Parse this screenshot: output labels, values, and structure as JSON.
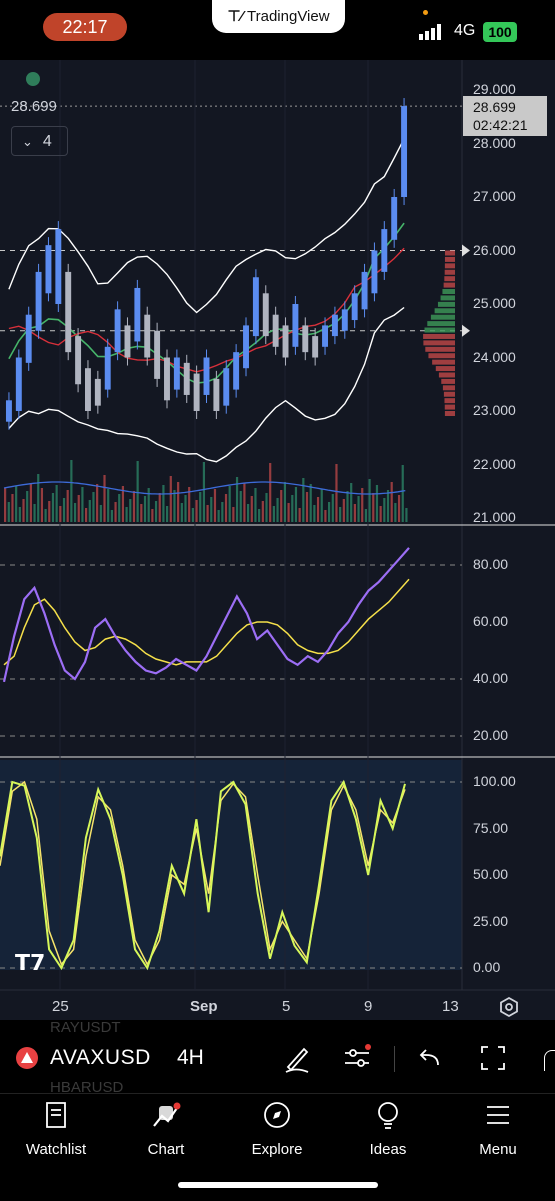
{
  "status_bar": {
    "time": "22:17",
    "app_label": "TradingView",
    "network": "4G",
    "battery": "100"
  },
  "chart": {
    "last_price": "28.699",
    "countdown": "02:42:21",
    "indicator_count": "4",
    "price_axis": [
      "29.000",
      "28.000",
      "27.000",
      "26.000",
      "25.000",
      "24.000",
      "23.000",
      "22.000",
      "21.000"
    ],
    "rsi_axis": [
      "80.00",
      "60.00",
      "40.00",
      "20.00"
    ],
    "stoch_axis": [
      "100.00",
      "75.00",
      "50.00",
      "25.00",
      "0.00"
    ],
    "date_axis": [
      "25",
      "Sep",
      "5",
      "9",
      "13"
    ]
  },
  "chart_data": {
    "type": "line",
    "title": "",
    "price_ylim": [
      21.0,
      29.0
    ],
    "rsi_ylim": [
      20,
      80
    ],
    "stoch_ylim": [
      0,
      100
    ],
    "candles": [
      [
        23.2,
        22.8
      ],
      [
        24.0,
        23.0
      ],
      [
        24.8,
        23.9
      ],
      [
        25.6,
        24.5
      ],
      [
        26.1,
        25.2
      ],
      [
        26.4,
        25.0
      ],
      [
        25.6,
        24.1
      ],
      [
        24.4,
        23.5
      ],
      [
        23.8,
        23.0
      ],
      [
        23.6,
        23.1
      ],
      [
        24.2,
        23.4
      ],
      [
        24.9,
        24.1
      ],
      [
        24.6,
        24.0
      ],
      [
        25.3,
        24.3
      ],
      [
        24.8,
        24.0
      ],
      [
        24.5,
        23.6
      ],
      [
        24.0,
        23.2
      ],
      [
        24.0,
        23.4
      ],
      [
        23.9,
        23.3
      ],
      [
        23.7,
        23.0
      ],
      [
        24.0,
        23.3
      ],
      [
        23.6,
        23.0
      ],
      [
        23.8,
        23.1
      ],
      [
        24.1,
        23.4
      ],
      [
        24.6,
        23.8
      ],
      [
        25.5,
        24.4
      ],
      [
        25.2,
        24.4
      ],
      [
        24.8,
        24.2
      ],
      [
        24.6,
        24.0
      ],
      [
        25.0,
        24.2
      ],
      [
        24.6,
        24.1
      ],
      [
        24.4,
        24.0
      ],
      [
        24.6,
        24.2
      ],
      [
        24.8,
        24.4
      ],
      [
        24.9,
        24.5
      ],
      [
        25.2,
        24.7
      ],
      [
        25.6,
        24.9
      ],
      [
        26.0,
        25.2
      ],
      [
        26.4,
        25.6
      ],
      [
        27.0,
        26.2
      ],
      [
        28.7,
        27.0
      ]
    ],
    "rsi": [
      39,
      55,
      68,
      72,
      63,
      52,
      43,
      40,
      46,
      58,
      61,
      55,
      50,
      46,
      43,
      42,
      44,
      47,
      45,
      43,
      48,
      55,
      62,
      69,
      63,
      54,
      57,
      52,
      47,
      45,
      48,
      46,
      50,
      56,
      60,
      66,
      71,
      74,
      78,
      82,
      86
    ],
    "rsi_ma": [
      45,
      48,
      58,
      66,
      68,
      64,
      58,
      53,
      50,
      51,
      54,
      55,
      54,
      52,
      49,
      47,
      46,
      45,
      46,
      46,
      46,
      48,
      52,
      56,
      59,
      60,
      60,
      59,
      56,
      52,
      50,
      49,
      49,
      50,
      53,
      57,
      61,
      64,
      67,
      71,
      75
    ],
    "stoch_k": [
      60,
      100,
      98,
      70,
      10,
      0,
      15,
      70,
      96,
      80,
      50,
      10,
      0,
      20,
      55,
      40,
      80,
      30,
      95,
      100,
      88,
      40,
      5,
      30,
      12,
      3,
      45,
      90,
      100,
      80,
      50,
      90,
      75,
      99
    ],
    "stoch_d": [
      55,
      95,
      100,
      80,
      20,
      2,
      10,
      60,
      92,
      85,
      55,
      15,
      2,
      15,
      50,
      45,
      75,
      40,
      90,
      99,
      92,
      50,
      10,
      25,
      15,
      5,
      40,
      85,
      98,
      85,
      55,
      85,
      78,
      96
    ]
  },
  "symbol_bar": {
    "ghost_top": "RAYUSDT",
    "symbol": "AVAXUSD",
    "timeframe": "4H",
    "ghost_bottom": "HBARUSD"
  },
  "nav": [
    {
      "label": "Watchlist",
      "icon": "book-icon"
    },
    {
      "label": "Chart",
      "icon": "chart-icon"
    },
    {
      "label": "Explore",
      "icon": "compass-icon"
    },
    {
      "label": "Ideas",
      "icon": "lightbulb-icon"
    },
    {
      "label": "Menu",
      "icon": "hamburger-icon"
    }
  ],
  "colors": {
    "up": "#5b8cf0",
    "down": "#b0b4c0",
    "rsi": "#9c6ef5",
    "rsi_ma": "#f5e04a",
    "stoch_k": "#d6f75a",
    "stoch_d": "#f7e36b",
    "bands": "#ffffff",
    "ma_green": "#46b46a",
    "ma_red": "#d8303a"
  }
}
